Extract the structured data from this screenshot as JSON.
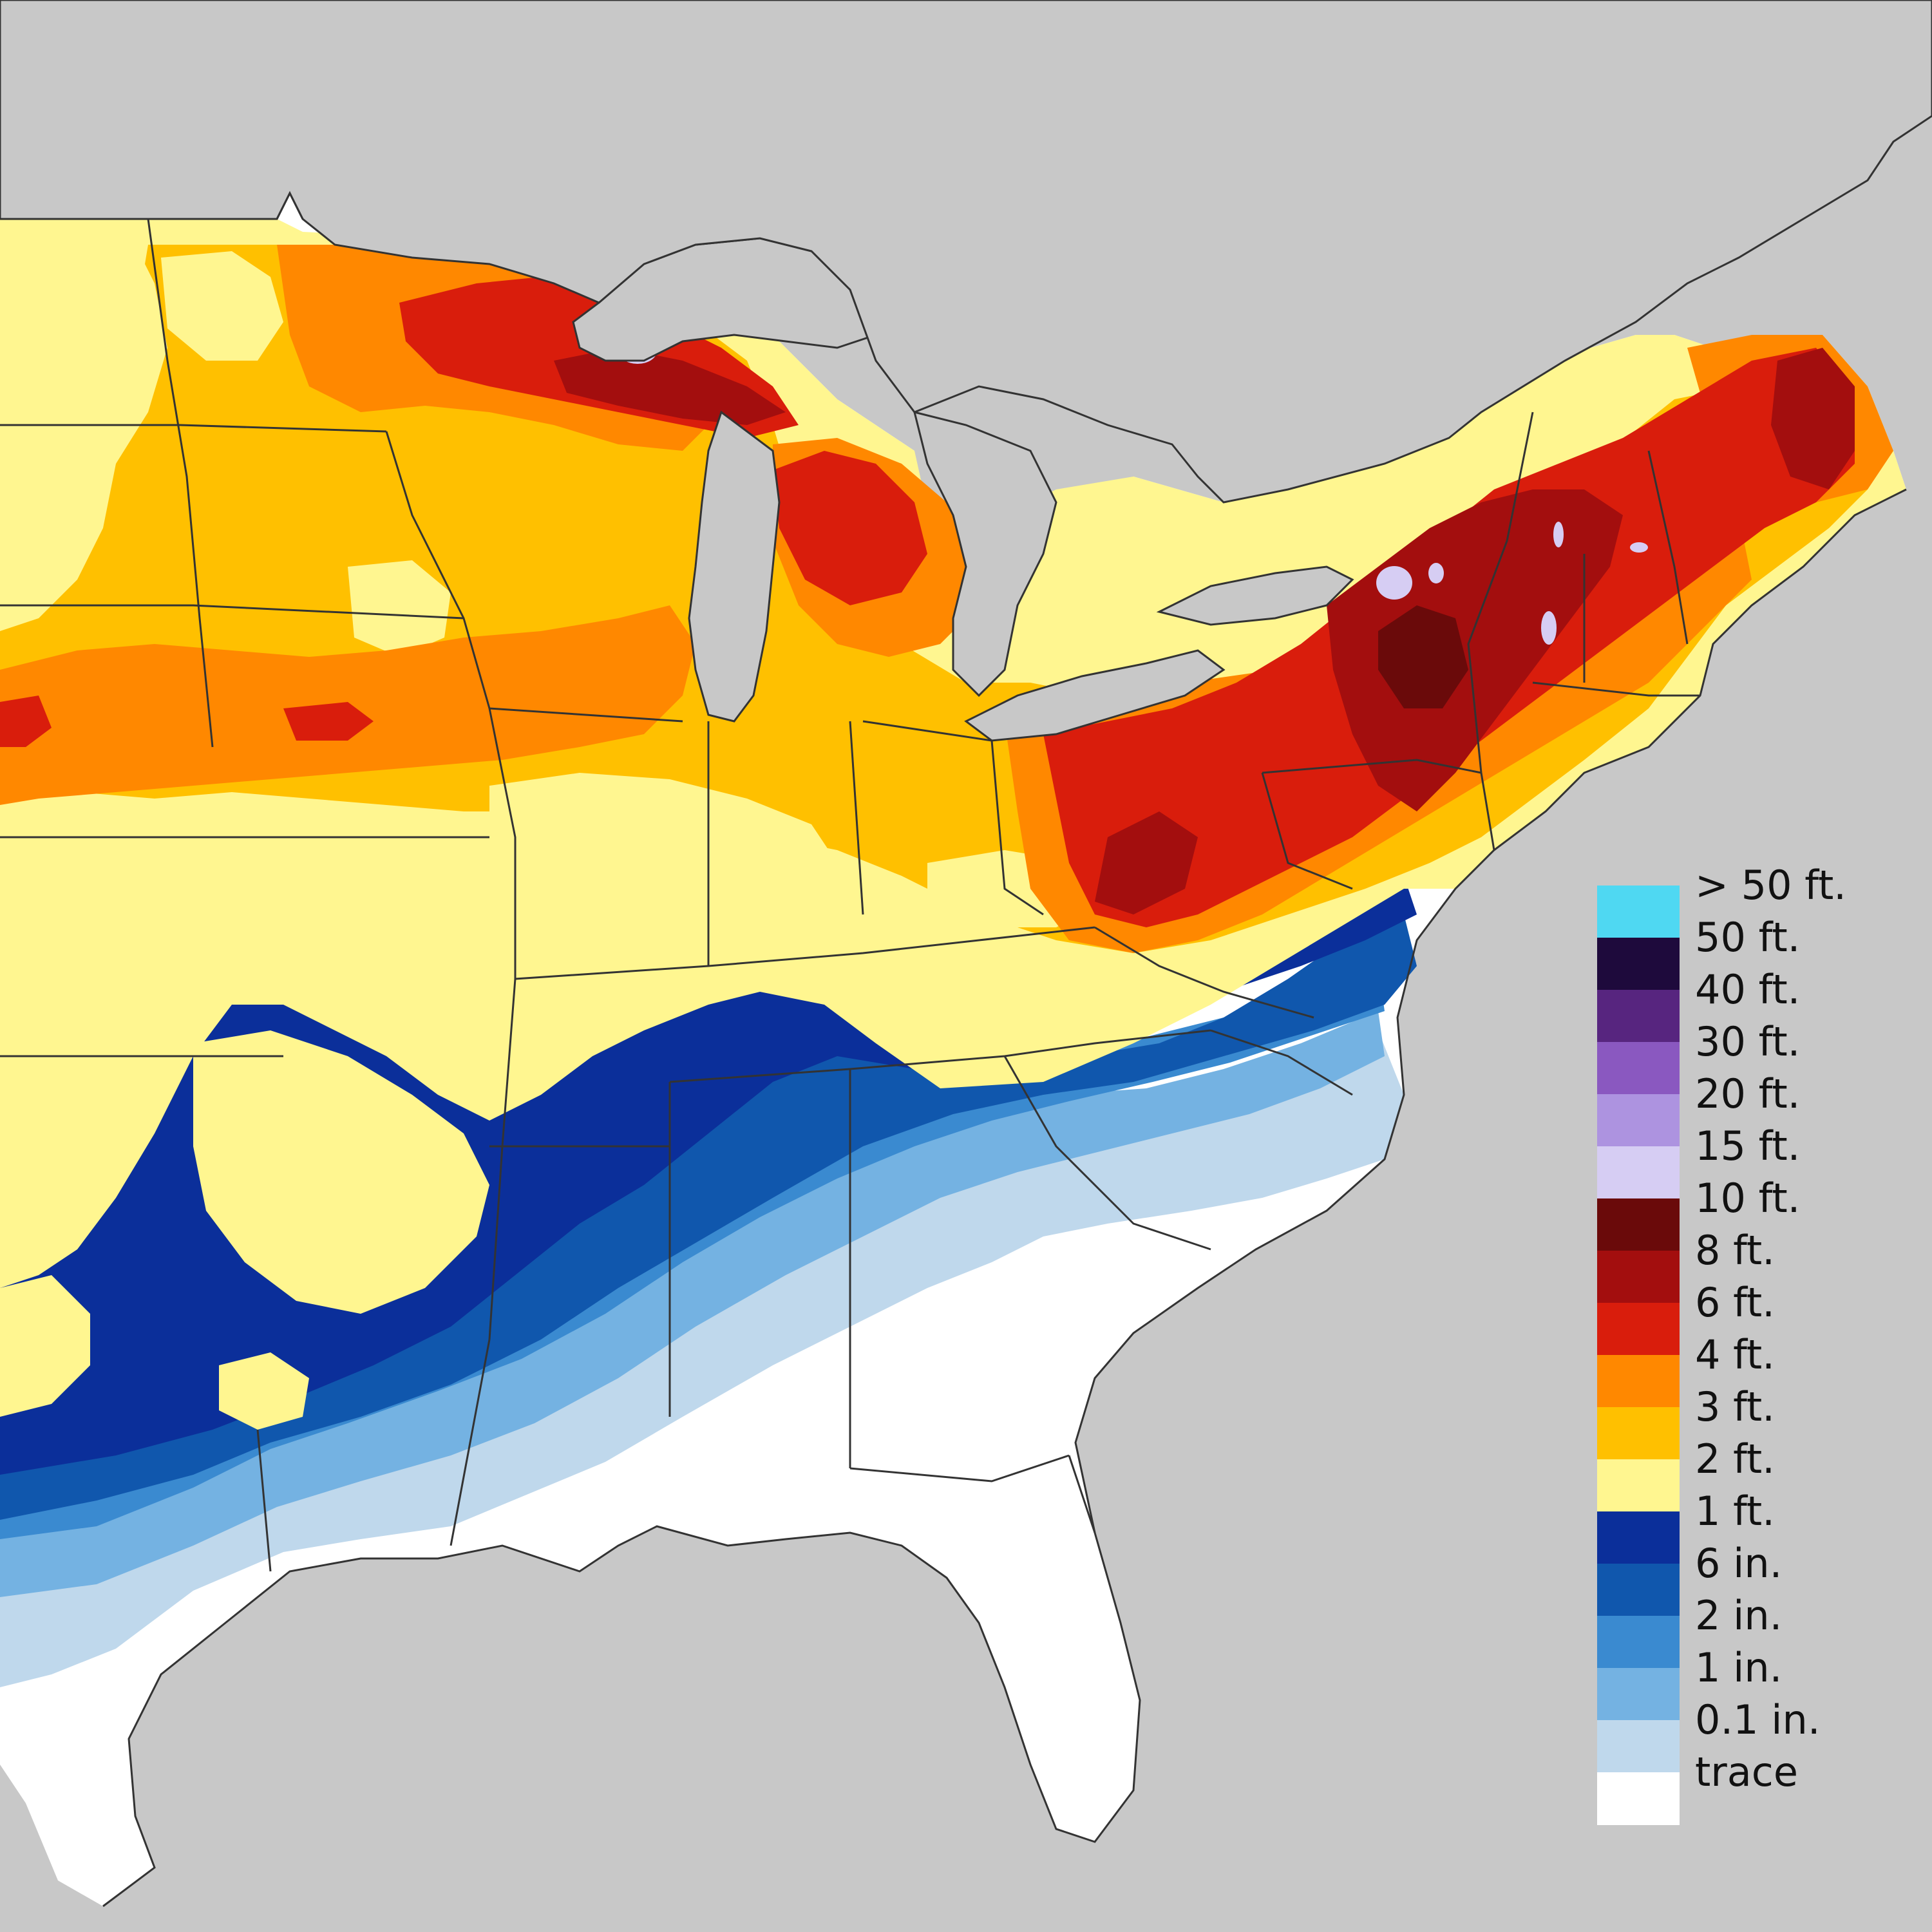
{
  "map": {
    "background_color": "#c8c8c8",
    "land_base_color": "#ffffff",
    "boundary_color": "#333333"
  },
  "legend": {
    "entries": [
      {
        "label": "> 50 ft.",
        "color": "#4fd8f2"
      },
      {
        "label": "50 ft.",
        "color": "#1e0a3c"
      },
      {
        "label": "40 ft.",
        "color": "#57257f"
      },
      {
        "label": "30 ft.",
        "color": "#8a58c0"
      },
      {
        "label": "20 ft.",
        "color": "#ad93e0"
      },
      {
        "label": "15 ft.",
        "color": "#d6cdf3"
      },
      {
        "label": "10 ft.",
        "color": "#6a0a0a"
      },
      {
        "label": "8 ft.",
        "color": "#a30e0e"
      },
      {
        "label": "6 ft.",
        "color": "#d91d0c"
      },
      {
        "label": "4 ft.",
        "color": "#ff8800"
      },
      {
        "label": "3 ft.",
        "color": "#ffc000"
      },
      {
        "label": "2 ft.",
        "color": "#fff690"
      },
      {
        "label": "1 ft.",
        "color": "#0b2f9a"
      },
      {
        "label": "6 in.",
        "color": "#1057ad"
      },
      {
        "label": "2 in.",
        "color": "#3a8ad0"
      },
      {
        "label": "1 in.",
        "color": "#74b2e2"
      },
      {
        "label": "0.1 in.",
        "color": "#bfd8ec"
      },
      {
        "label": "trace",
        "color": "#ffffff"
      }
    ]
  }
}
